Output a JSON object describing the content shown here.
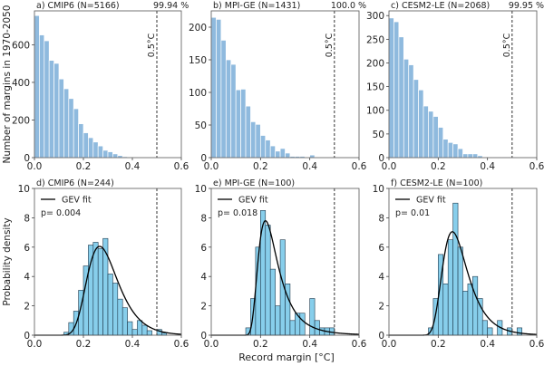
{
  "figure": {
    "ylabel_top": "Number of margins in 1970-2050",
    "ylabel_bottom": "Probability density",
    "xlabel_bottom": "Record margin [°C]"
  },
  "chart_data": [
    {
      "id": "a",
      "type": "bar",
      "title": "a) CMIP6 (N=5166)",
      "annotation_top_right": "99.94 %",
      "threshold_label": "0.5°C",
      "threshold_x": 0.5,
      "xlim": [
        0,
        0.6
      ],
      "ylim": [
        0,
        780
      ],
      "xticks": [
        "0.0",
        "0.2",
        "0.4",
        "0.6"
      ],
      "xtick_values": [
        0.0,
        0.2,
        0.4,
        0.6
      ],
      "yticks": [
        "0",
        "200",
        "400",
        "600"
      ],
      "ytick_values": [
        0,
        200,
        400,
        600
      ],
      "bin_width": 0.02,
      "bin_start": 0.0,
      "values": [
        755,
        652,
        621,
        517,
        501,
        418,
        366,
        314,
        260,
        180,
        132,
        106,
        83,
        62,
        39,
        31,
        20,
        11,
        5,
        3,
        2,
        1,
        1,
        1,
        0,
        0
      ],
      "xlabel": "",
      "ylabel": "Number of margins in 1970-2050"
    },
    {
      "id": "b",
      "type": "bar",
      "title": "b) MPI-GE (N=1431)",
      "annotation_top_right": "100.0 %",
      "threshold_label": "0.5°C",
      "threshold_x": 0.5,
      "xlim": [
        0,
        0.6
      ],
      "ylim": [
        0,
        225
      ],
      "xticks": [
        "0.0",
        "0.2",
        "0.4",
        "0.6"
      ],
      "xtick_values": [
        0.0,
        0.2,
        0.4,
        0.6
      ],
      "yticks": [
        "0",
        "50",
        "100",
        "150",
        "200"
      ],
      "ytick_values": [
        0,
        50,
        100,
        150,
        200
      ],
      "bin_width": 0.02,
      "bin_start": 0.0,
      "values": [
        215,
        212,
        180,
        150,
        143,
        104,
        105,
        79,
        55,
        51,
        34,
        27,
        18,
        10,
        14,
        7,
        2,
        2,
        2,
        0,
        4,
        1,
        1
      ],
      "xlabel": "",
      "ylabel": ""
    },
    {
      "id": "c",
      "type": "bar",
      "title": "c) CESM2-LE (N=2068)",
      "annotation_top_right": "99.95 %",
      "threshold_label": "0.5°C",
      "threshold_x": 0.5,
      "xlim": [
        0,
        0.6
      ],
      "ylim": [
        0,
        310
      ],
      "xticks": [
        "0.0",
        "0.2",
        "0.4",
        "0.6"
      ],
      "xtick_values": [
        0.0,
        0.2,
        0.4,
        0.6
      ],
      "yticks": [
        "0",
        "50",
        "100",
        "150",
        "200",
        "250",
        "300"
      ],
      "ytick_values": [
        0,
        50,
        100,
        150,
        200,
        250,
        300
      ],
      "bin_width": 0.02,
      "bin_start": 0.0,
      "values": [
        295,
        287,
        255,
        208,
        196,
        165,
        143,
        109,
        98,
        87,
        64,
        39,
        32,
        29,
        19,
        8,
        8,
        8,
        4,
        1,
        1,
        1,
        1,
        1,
        1,
        1
      ],
      "xlabel": "",
      "ylabel": ""
    },
    {
      "id": "d",
      "type": "bar",
      "title": "d) CMIP6 (N=244)",
      "legend": "GEV fit",
      "legend_position": "top-left",
      "p_value_text": "p= 0.004",
      "threshold_x": 0.5,
      "xlim": [
        0,
        0.6
      ],
      "ylim": [
        0,
        10
      ],
      "xticks": [
        "0.0",
        "0.2",
        "0.4",
        "0.6"
      ],
      "xtick_values": [
        0.0,
        0.2,
        0.4,
        0.6
      ],
      "yticks": [
        "0",
        "2",
        "4",
        "6",
        "8",
        "10"
      ],
      "ytick_values": [
        0,
        2,
        4,
        6,
        8,
        10
      ],
      "bin_width": 0.02,
      "bin_start": 0.12,
      "values": [
        0.2,
        0.86,
        1.64,
        3.06,
        4.72,
        6.14,
        6.33,
        5.9,
        6.59,
        4.17,
        3.55,
        2.46,
        1.87,
        0.92,
        0.39,
        1.0,
        0.68,
        0.31,
        0.0,
        0.39,
        0.15
      ],
      "gev_fit": {
        "mu": 0.265,
        "sigma": 0.062,
        "xi": -0.02,
        "peak": 6.05
      },
      "xlabel": "",
      "ylabel": "Probability density"
    },
    {
      "id": "e",
      "type": "bar",
      "title": "e) MPI-GE (N=100)",
      "legend": "GEV fit",
      "legend_position": "top-left",
      "p_value_text": "p= 0.018",
      "threshold_x": 0.5,
      "xlim": [
        0,
        0.6
      ],
      "ylim": [
        0,
        10
      ],
      "xticks": [
        "0.0",
        "0.2",
        "0.4",
        "0.6"
      ],
      "xtick_values": [
        0.0,
        0.2,
        0.4,
        0.6
      ],
      "yticks": [
        "0",
        "2",
        "4",
        "6",
        "8",
        "10"
      ],
      "ytick_values": [
        0,
        2,
        4,
        6,
        8,
        10
      ],
      "bin_width": 0.02,
      "bin_start": 0.14,
      "values": [
        0.5,
        2.5,
        6.0,
        8.5,
        7.5,
        4.5,
        2.0,
        6.5,
        3.5,
        1.0,
        1.5,
        1.5,
        0.0,
        2.5,
        1.0,
        0.5,
        0.5,
        0.5
      ],
      "gev_fit": {
        "mu": 0.228,
        "sigma": 0.045,
        "xi": 0.2,
        "peak": 7.8
      },
      "xlabel": "Record margin [°C]",
      "ylabel": ""
    },
    {
      "id": "f",
      "type": "bar",
      "title": "f) CESM2-LE (N=100)",
      "legend": "GEV fit",
      "legend_position": "top-left",
      "p_value_text": "p= 0.01",
      "threshold_x": 0.5,
      "xlim": [
        0,
        0.6
      ],
      "ylim": [
        0,
        10
      ],
      "xticks": [
        "0.0",
        "0.2",
        "0.4",
        "0.6"
      ],
      "xtick_values": [
        0.0,
        0.2,
        0.4,
        0.6
      ],
      "yticks": [
        "0",
        "2",
        "4",
        "6",
        "8",
        "10"
      ],
      "ytick_values": [
        0,
        2,
        4,
        6,
        8,
        10
      ],
      "bin_width": 0.02,
      "bin_start": 0.16,
      "values": [
        0.5,
        2.5,
        5.5,
        3.5,
        6.5,
        9.0,
        6.0,
        3.0,
        3.5,
        4.0,
        2.5,
        1.0,
        0.5,
        0.0,
        1.0,
        0.0,
        0.5,
        0.0,
        0.5
      ],
      "gev_fit": {
        "mu": 0.26,
        "sigma": 0.052,
        "xi": 0.05,
        "peak": 7.05
      },
      "xlabel": "",
      "ylabel": ""
    }
  ],
  "colors": {
    "top_bar": "#8fbade",
    "top_bar_edge": "#ffffff",
    "bottom_bar": "#87ceeb",
    "bottom_bar_edge": "#1f3a4d",
    "fit_line": "#000000",
    "threshold_line": "#333333",
    "axes": "#444444"
  }
}
